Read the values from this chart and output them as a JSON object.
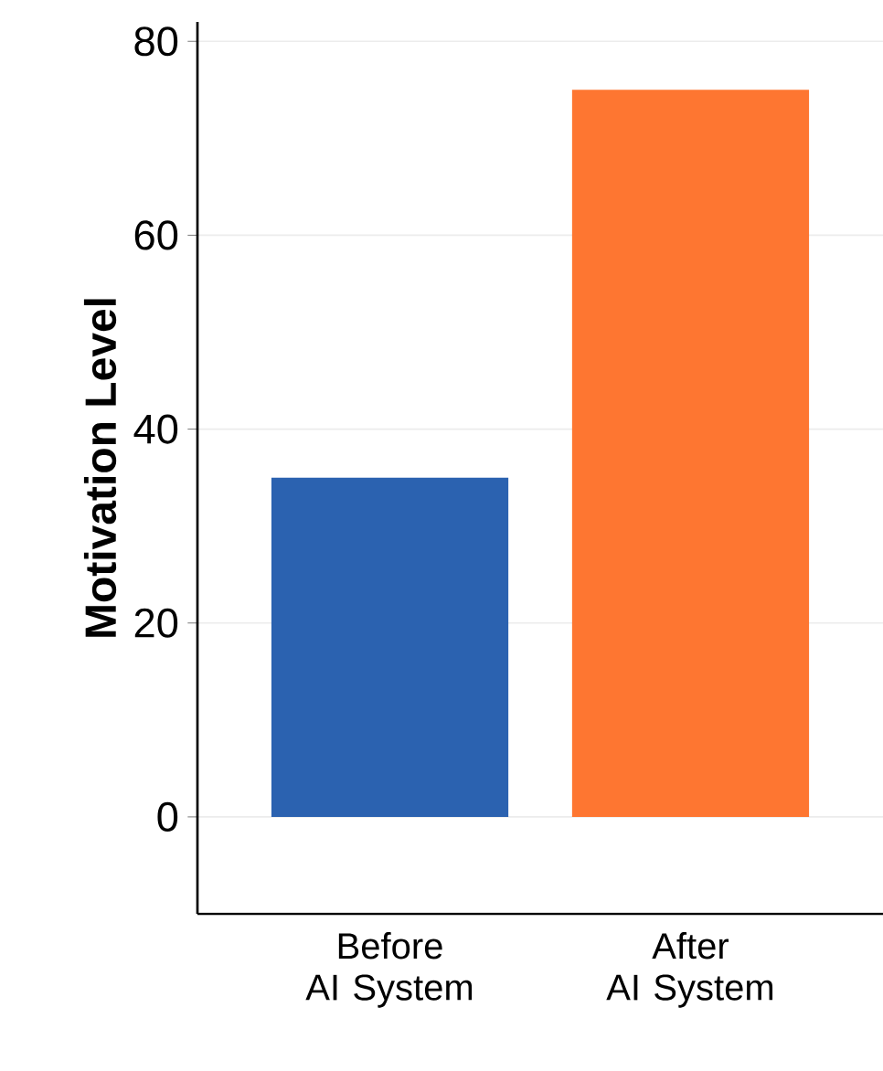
{
  "chart_data": {
    "type": "bar",
    "ylabel": "Motivation Level",
    "categories": [
      "Before\nAI System",
      "After\nAI System"
    ],
    "values": [
      35,
      75
    ],
    "colors": [
      "#2b62b0",
      "#fe7631"
    ],
    "ylim": [
      -10,
      82
    ],
    "yticks": [
      0,
      20,
      40,
      60,
      80
    ],
    "grid": "y"
  }
}
